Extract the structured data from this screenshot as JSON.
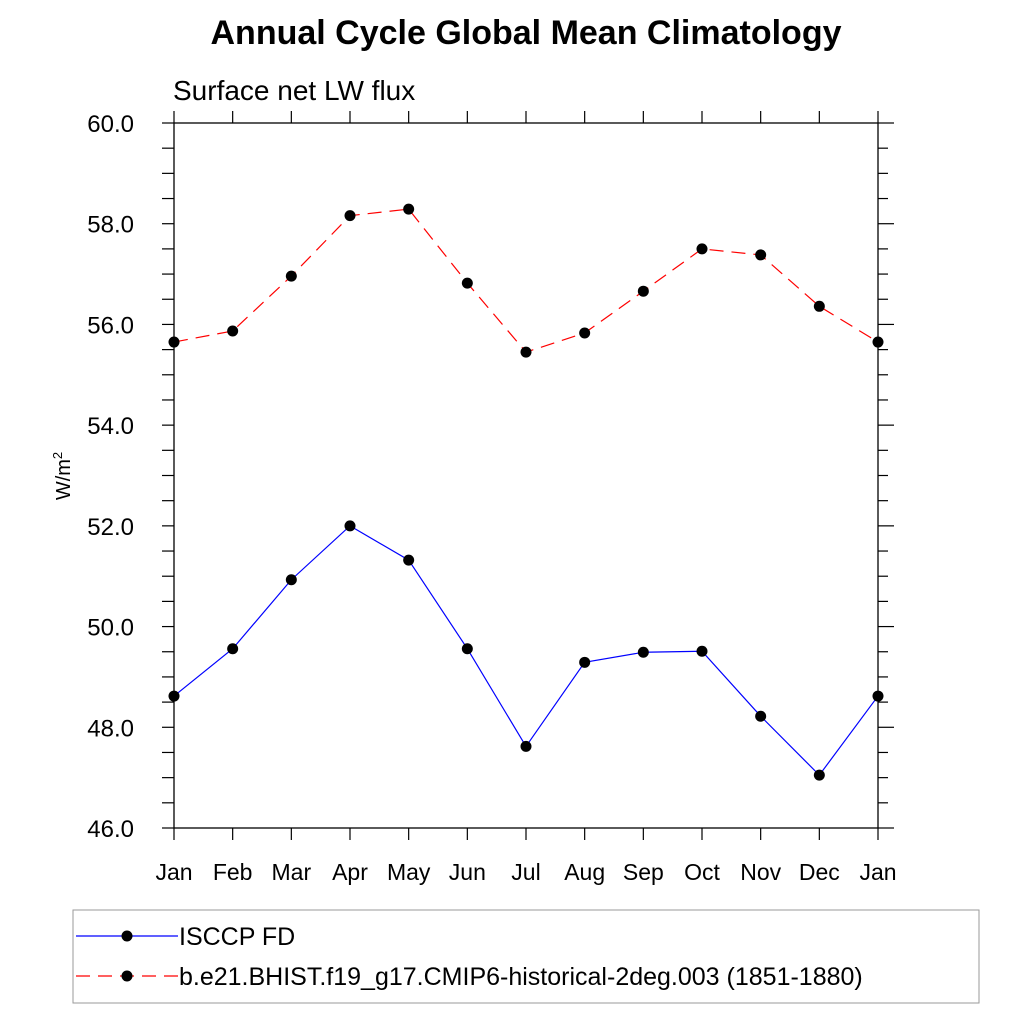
{
  "chart_data": {
    "type": "line",
    "title": "Annual Cycle Global Mean Climatology",
    "subtitle": "Surface net LW flux",
    "ylabel": "W/m",
    "ylabel_superscript": "2",
    "xlabel": "",
    "categories": [
      "Jan",
      "Feb",
      "Mar",
      "Apr",
      "May",
      "Jun",
      "Jul",
      "Aug",
      "Sep",
      "Oct",
      "Nov",
      "Dec",
      "Jan"
    ],
    "ylim": [
      46.0,
      60.0
    ],
    "yticks": [
      "46.0",
      "48.0",
      "50.0",
      "52.0",
      "54.0",
      "56.0",
      "58.0",
      "60.0"
    ],
    "grid": false,
    "legend_position": "bottom",
    "series": [
      {
        "name": "ISCCP FD",
        "color": "#0000ff",
        "line_style": "solid",
        "marker": "circle",
        "values": [
          48.62,
          49.56,
          50.93,
          52.0,
          51.32,
          49.56,
          47.62,
          49.29,
          49.49,
          49.51,
          48.22,
          47.05,
          48.62
        ]
      },
      {
        "name": "b.e21.BHIST.f19_g17.CMIP6-historical-2deg.003 (1851-1880)",
        "color": "#ff0000",
        "line_style": "dashed",
        "marker": "circle",
        "values": [
          55.65,
          55.87,
          56.96,
          58.16,
          58.29,
          56.82,
          55.45,
          55.83,
          56.66,
          57.5,
          57.38,
          56.36,
          55.65
        ]
      }
    ]
  }
}
